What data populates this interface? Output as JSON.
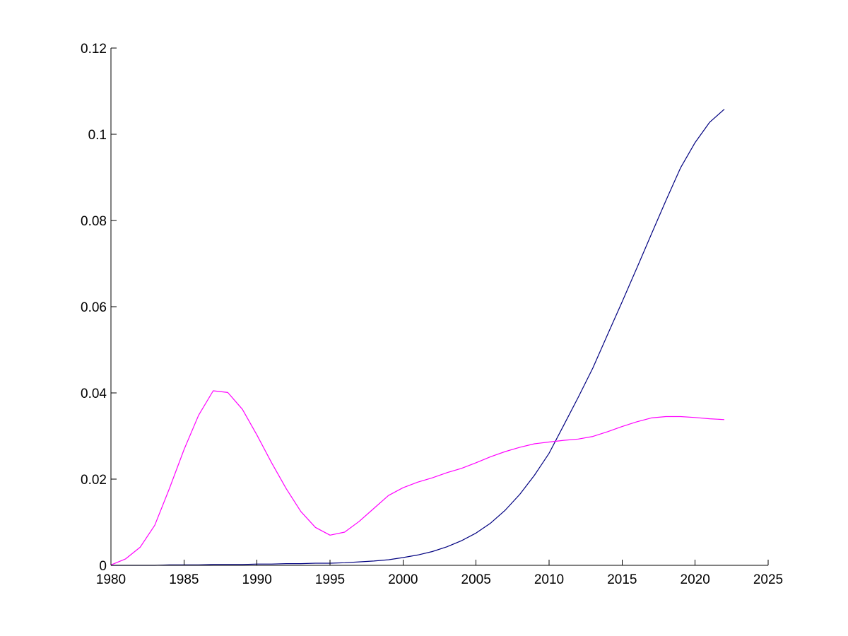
{
  "chart_data": {
    "type": "line",
    "title": "",
    "xlabel": "",
    "ylabel": "",
    "xlim": [
      1980,
      2025
    ],
    "ylim": [
      0,
      0.12
    ],
    "grid": false,
    "x_ticks": [
      "1980",
      "1985",
      "1990",
      "1995",
      "2000",
      "2005",
      "2010",
      "2015",
      "2020",
      "2025"
    ],
    "y_ticks": [
      "0",
      "0.02",
      "0.04",
      "0.06",
      "0.08",
      "0.1",
      "0.12"
    ],
    "x_tick_values": [
      1980,
      1985,
      1990,
      1995,
      2000,
      2005,
      2010,
      2015,
      2020,
      2025
    ],
    "y_tick_values": [
      0,
      0.02,
      0.04,
      0.06,
      0.08,
      0.1,
      0.12
    ],
    "series": [
      {
        "color": "#000080",
        "x": [
          1980,
          1981,
          1982,
          1983,
          1984,
          1985,
          1986,
          1987,
          1988,
          1989,
          1990,
          1991,
          1992,
          1993,
          1994,
          1995,
          1996,
          1997,
          1998,
          1999,
          2000,
          2001,
          2002,
          2003,
          2004,
          2005,
          2006,
          2007,
          2008,
          2009,
          2010,
          2011,
          2012,
          2013,
          2014,
          2015,
          2016,
          2017,
          2018,
          2019,
          2020,
          2021,
          2022
        ],
        "values": [
          0,
          0,
          0,
          0,
          0.0001,
          0.0001,
          0.0001,
          0.0002,
          0.0002,
          0.0002,
          0.0003,
          0.0003,
          0.0004,
          0.0004,
          0.0005,
          0.0005,
          0.0006,
          0.0008,
          0.001,
          0.0013,
          0.0018,
          0.0024,
          0.0032,
          0.0043,
          0.0057,
          0.0075,
          0.0098,
          0.0128,
          0.0165,
          0.0209,
          0.026,
          0.0325,
          0.039,
          0.0458,
          0.0535,
          0.0611,
          0.0689,
          0.0768,
          0.0846,
          0.0922,
          0.0981,
          0.1028,
          0.1058
        ]
      },
      {
        "color": "#ff00ff",
        "x": [
          1980,
          1981,
          1982,
          1983,
          1984,
          1985,
          1986,
          1987,
          1988,
          1989,
          1990,
          1991,
          1992,
          1993,
          1994,
          1995,
          1996,
          1997,
          1998,
          1999,
          2000,
          2001,
          2002,
          2003,
          2004,
          2005,
          2006,
          2007,
          2008,
          2009,
          2010,
          2011,
          2012,
          2013,
          2014,
          2015,
          2016,
          2017,
          2018,
          2019,
          2020,
          2021,
          2022
        ],
        "values": [
          0.0001,
          0.0015,
          0.0042,
          0.0093,
          0.0178,
          0.0268,
          0.0348,
          0.0405,
          0.0401,
          0.0362,
          0.0302,
          0.0238,
          0.0178,
          0.0125,
          0.0088,
          0.007,
          0.0077,
          0.0102,
          0.0132,
          0.0162,
          0.018,
          0.0193,
          0.0203,
          0.0215,
          0.0225,
          0.0238,
          0.0252,
          0.0264,
          0.0274,
          0.0282,
          0.0286,
          0.029,
          0.0293,
          0.0299,
          0.031,
          0.0322,
          0.0333,
          0.0342,
          0.0345,
          0.0345,
          0.0343,
          0.034,
          0.0338
        ]
      }
    ]
  }
}
